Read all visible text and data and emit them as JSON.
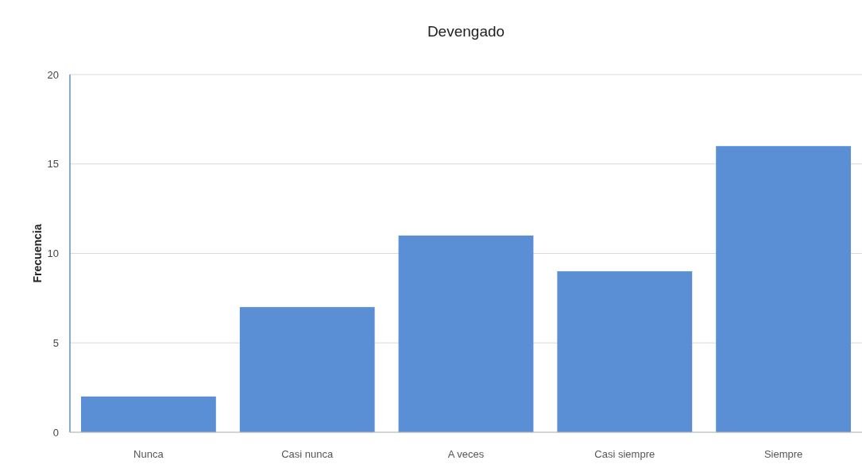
{
  "chart_data": {
    "type": "bar",
    "title": "Devengado",
    "ylabel": "Frecuencia",
    "categories": [
      "Nunca",
      "Casi nunca",
      "A veces",
      "Casi siempre",
      "Siempre"
    ],
    "values": [
      2,
      7,
      11,
      9,
      16
    ],
    "color": "#5a8fd6",
    "ylim": [
      0,
      20
    ],
    "yticks": [
      0,
      5,
      10,
      15,
      20
    ],
    "grid": "y"
  }
}
